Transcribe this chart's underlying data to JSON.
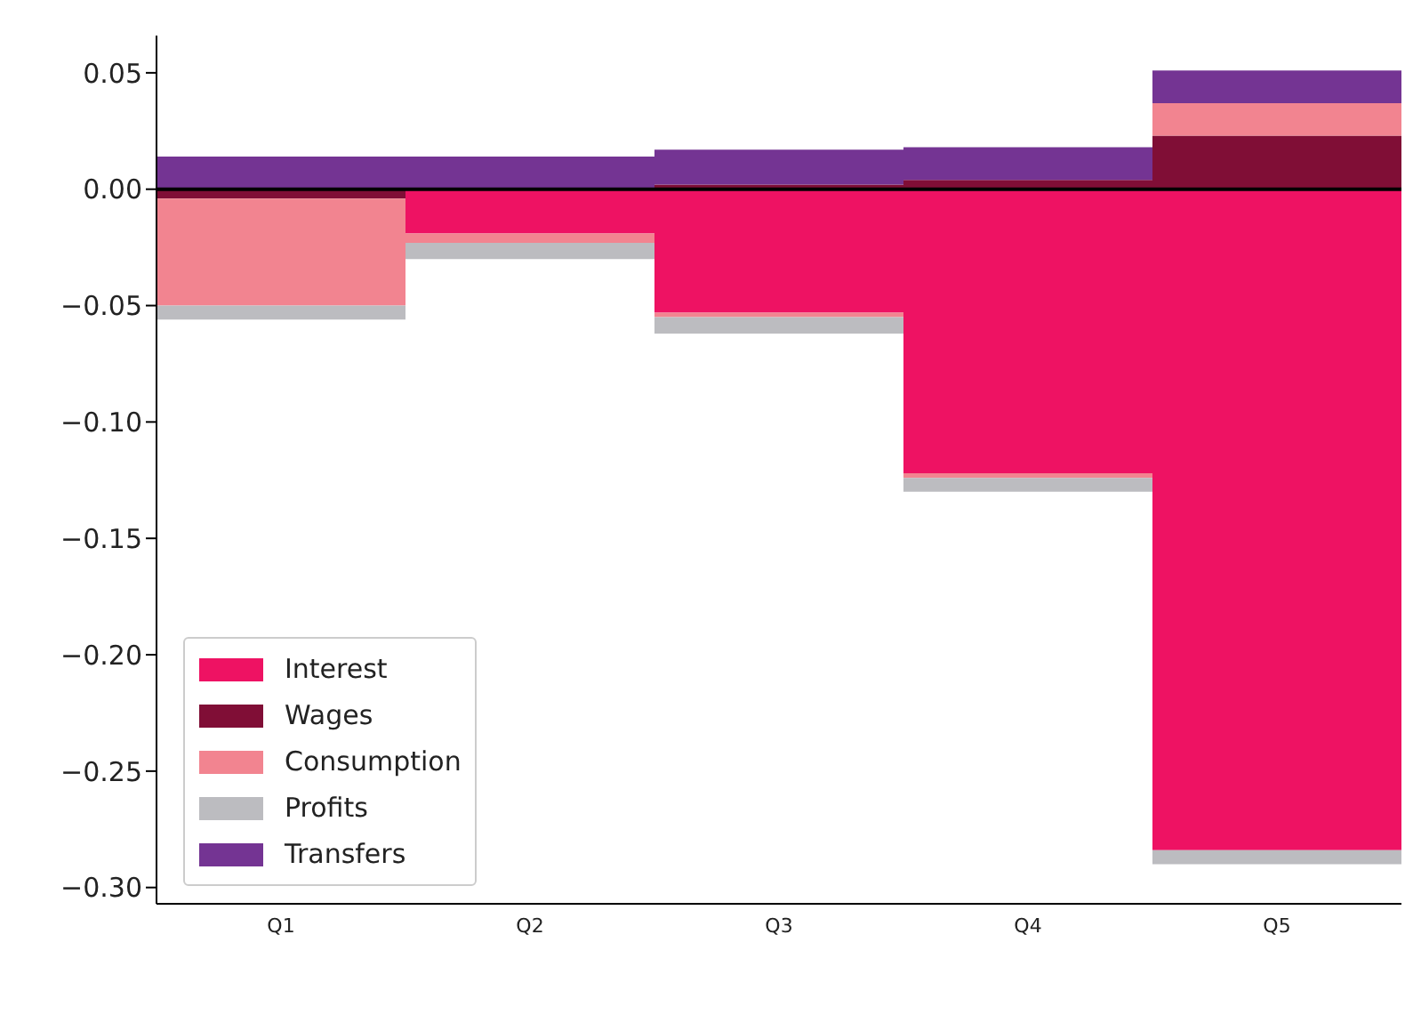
{
  "chart_data": {
    "type": "bar",
    "stacked": true,
    "categories": [
      "Q1",
      "Q2",
      "Q3",
      "Q4",
      "Q5"
    ],
    "series": [
      {
        "name": "Interest",
        "color": "#ee1263",
        "values": [
          0,
          -0.019,
          -0.053,
          -0.122,
          -0.284
        ]
      },
      {
        "name": "Wages",
        "color": "#800e36",
        "values": [
          -0.004,
          null,
          0.002,
          0.004,
          0.023
        ]
      },
      {
        "name": "Consumption",
        "color": "#f28490",
        "values": [
          -0.046,
          -0.004,
          -0.002,
          -0.002,
          0.014
        ]
      },
      {
        "name": "Profits",
        "color": "#bcbcc0",
        "values": [
          -0.006,
          -0.007,
          -0.007,
          -0.006,
          -0.006
        ]
      },
      {
        "name": "Transfers",
        "color": "#743493",
        "values": [
          0.014,
          0.014,
          0.015,
          0.014,
          0.014
        ]
      }
    ],
    "ylim": [
      -0.307,
      0.066
    ],
    "yticks": [
      {
        "value": 0.05,
        "label": "0.05"
      },
      {
        "value": 0,
        "label": "0.00"
      },
      {
        "value": -0.05,
        "label": "−0.05"
      },
      {
        "value": -0.1,
        "label": "−0.10"
      },
      {
        "value": -0.15,
        "label": "−0.15"
      },
      {
        "value": -0.2,
        "label": "−0.20"
      },
      {
        "value": -0.25,
        "label": "−0.25"
      },
      {
        "value": -0.3,
        "label": "−0.30"
      }
    ],
    "ref_lines": [
      {
        "axis": "y",
        "value": 0,
        "label": null,
        "color": "#000000"
      }
    ],
    "legend": "bottom left",
    "grid": false
  }
}
